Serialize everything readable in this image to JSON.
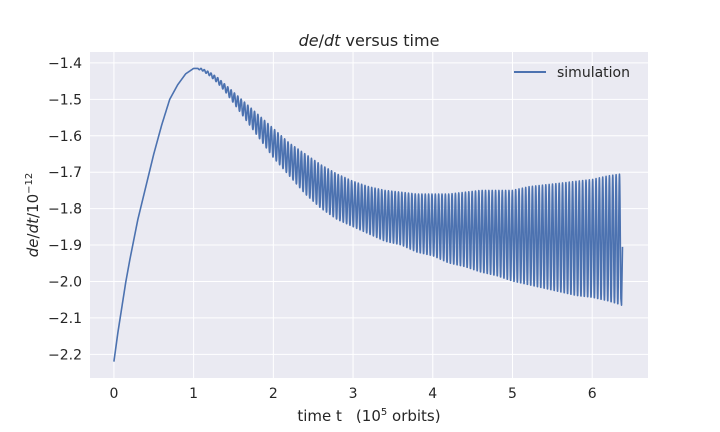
{
  "chart_data": {
    "type": "line",
    "title": "de/dt versus time",
    "xlabel": "time t (10^5 orbits)",
    "ylabel": "de/dt/10^-12",
    "xlim": [
      -0.3,
      6.7
    ],
    "ylim": [
      -2.265,
      -1.37
    ],
    "x_ticks": [
      0,
      1,
      2,
      3,
      4,
      5,
      6
    ],
    "y_ticks": [
      -2.2,
      -2.1,
      -2.0,
      -1.9,
      -1.8,
      -1.7,
      -1.6,
      -1.5,
      -1.4
    ],
    "x_tick_labels": [
      "0",
      "1",
      "2",
      "3",
      "4",
      "5",
      "6"
    ],
    "y_tick_labels": [
      "−2.2",
      "−2.1",
      "−2.0",
      "−1.9",
      "−1.8",
      "−1.7",
      "−1.6",
      "−1.5",
      "−1.4"
    ],
    "grid": true,
    "legend_position": "top-right",
    "series": [
      {
        "name": "simulation",
        "color": "#4c72b0",
        "envelope_x": [
          0,
          0.05,
          0.1,
          0.15,
          0.2,
          0.3,
          0.4,
          0.5,
          0.6,
          0.7,
          0.8,
          0.9,
          1.0,
          1.1,
          1.2,
          1.3,
          1.4,
          1.5,
          1.6,
          1.7,
          1.8,
          1.9,
          2.0,
          2.2,
          2.4,
          2.6,
          2.8,
          3.0,
          3.2,
          3.4,
          3.6,
          3.8,
          4.0,
          4.2,
          4.4,
          4.6,
          4.8,
          5.0,
          5.2,
          5.4,
          5.6,
          5.8,
          6.0,
          6.2,
          6.35
        ],
        "envelope_upper": [
          -2.22,
          -2.14,
          -2.07,
          -2.0,
          -1.94,
          -1.83,
          -1.74,
          -1.65,
          -1.57,
          -1.5,
          -1.46,
          -1.43,
          -1.415,
          -1.415,
          -1.425,
          -1.44,
          -1.46,
          -1.48,
          -1.5,
          -1.52,
          -1.54,
          -1.56,
          -1.58,
          -1.62,
          -1.65,
          -1.68,
          -1.705,
          -1.725,
          -1.74,
          -1.75,
          -1.755,
          -1.76,
          -1.76,
          -1.76,
          -1.755,
          -1.75,
          -1.75,
          -1.75,
          -1.74,
          -1.735,
          -1.73,
          -1.725,
          -1.72,
          -1.71,
          -1.705
        ],
        "envelope_lower": [
          -2.22,
          -2.14,
          -2.07,
          -2.0,
          -1.94,
          -1.83,
          -1.74,
          -1.65,
          -1.57,
          -1.5,
          -1.46,
          -1.43,
          -1.415,
          -1.42,
          -1.435,
          -1.455,
          -1.48,
          -1.51,
          -1.54,
          -1.57,
          -1.6,
          -1.63,
          -1.66,
          -1.71,
          -1.76,
          -1.8,
          -1.83,
          -1.85,
          -1.87,
          -1.89,
          -1.9,
          -1.92,
          -1.93,
          -1.95,
          -1.96,
          -1.975,
          -1.985,
          -2.0,
          -2.01,
          -2.02,
          -2.03,
          -2.04,
          -2.045,
          -2.055,
          -2.065
        ],
        "oscillation_start": 1.05,
        "oscillation_period": 0.042,
        "x_end": 6.38,
        "x_end_value": -1.905
      }
    ]
  }
}
